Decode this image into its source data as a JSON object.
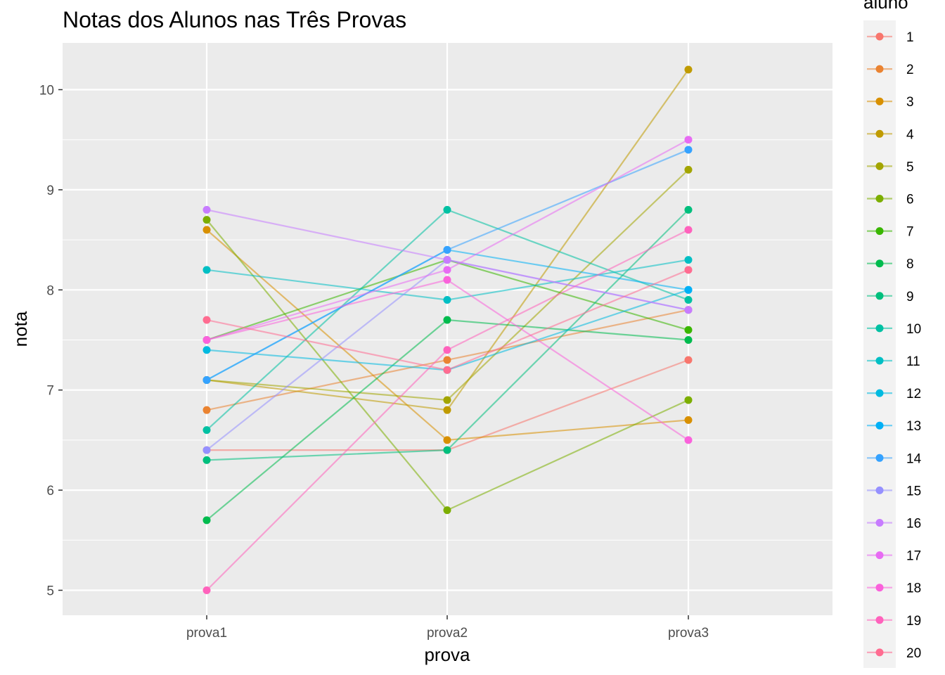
{
  "chart_data": {
    "type": "line",
    "title": "Notas dos Alunos nas Três Provas",
    "xlabel": "prova",
    "ylabel": "nota",
    "categories": [
      "prova1",
      "prova2",
      "prova3"
    ],
    "ylim": [
      4.75,
      10.4
    ],
    "yticks": [
      5,
      6,
      7,
      8,
      9,
      10
    ],
    "grid": true,
    "legend": {
      "title": "aluno",
      "position": "right"
    },
    "series": [
      {
        "name": "1",
        "color": "#F8766D",
        "values": [
          6.4,
          6.4,
          7.3
        ]
      },
      {
        "name": "2",
        "color": "#EA8331",
        "values": [
          6.8,
          7.3,
          7.8
        ]
      },
      {
        "name": "3",
        "color": "#D89000",
        "values": [
          8.6,
          6.5,
          6.7
        ]
      },
      {
        "name": "4",
        "color": "#C09B00",
        "values": [
          7.1,
          6.8,
          10.2
        ]
      },
      {
        "name": "5",
        "color": "#A3A500",
        "values": [
          7.1,
          6.9,
          9.2
        ]
      },
      {
        "name": "6",
        "color": "#7CAE00",
        "values": [
          8.7,
          5.8,
          6.9
        ]
      },
      {
        "name": "7",
        "color": "#39B600",
        "values": [
          7.5,
          8.3,
          7.6
        ]
      },
      {
        "name": "8",
        "color": "#00BB4E",
        "values": [
          5.7,
          7.7,
          7.5
        ]
      },
      {
        "name": "9",
        "color": "#00BF7D",
        "values": [
          6.3,
          6.4,
          8.8
        ]
      },
      {
        "name": "10",
        "color": "#00C1A3",
        "values": [
          6.6,
          8.8,
          7.9
        ]
      },
      {
        "name": "11",
        "color": "#00BFC4",
        "values": [
          8.2,
          7.9,
          8.3
        ]
      },
      {
        "name": "12",
        "color": "#00BAE0",
        "values": [
          7.4,
          7.2,
          8.0
        ]
      },
      {
        "name": "13",
        "color": "#00B0F6",
        "values": [
          7.1,
          8.4,
          8.0
        ]
      },
      {
        "name": "14",
        "color": "#35A2FF",
        "values": [
          7.1,
          8.4,
          9.4
        ]
      },
      {
        "name": "15",
        "color": "#9590FF",
        "values": [
          6.4,
          8.3,
          7.8
        ]
      },
      {
        "name": "16",
        "color": "#C77CFF",
        "values": [
          8.8,
          8.3,
          7.8
        ]
      },
      {
        "name": "17",
        "color": "#E76BF3",
        "values": [
          7.5,
          8.2,
          9.5
        ]
      },
      {
        "name": "18",
        "color": "#FA62DB",
        "values": [
          7.5,
          8.1,
          6.5
        ]
      },
      {
        "name": "19",
        "color": "#FF62BC",
        "values": [
          5.0,
          7.4,
          8.6
        ]
      },
      {
        "name": "20",
        "color": "#FF6C91",
        "values": [
          7.7,
          7.2,
          8.2
        ]
      }
    ]
  }
}
